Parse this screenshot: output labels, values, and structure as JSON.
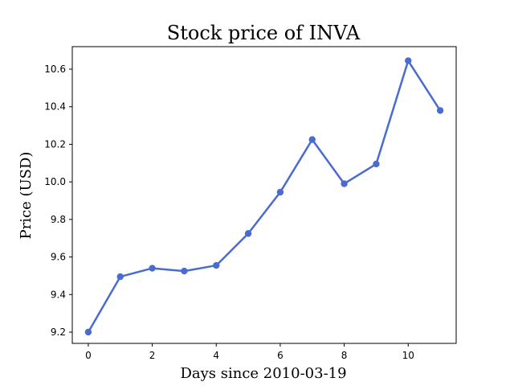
{
  "chart_data": {
    "type": "line",
    "title": "Stock price of INVA",
    "xlabel": "Days since 2010-03-19",
    "ylabel": "Price (USD)",
    "xlim": [
      -0.5,
      11.5
    ],
    "ylim": [
      9.14,
      10.72
    ],
    "x_ticks": [
      0,
      2,
      4,
      6,
      8,
      10
    ],
    "x_tick_labels": [
      "0",
      "2",
      "4",
      "6",
      "8",
      "10"
    ],
    "y_ticks": [
      9.2,
      9.4,
      9.6,
      9.8,
      10.0,
      10.2,
      10.4,
      10.6
    ],
    "y_tick_labels": [
      "9.2",
      "9.4",
      "9.6",
      "9.8",
      "10.0",
      "10.2",
      "10.4",
      "10.6"
    ],
    "grid": false,
    "series": [
      {
        "color": "#4a6bcf",
        "marker": "circle",
        "x": [
          0,
          1,
          2,
          3,
          4,
          5,
          6,
          7,
          8,
          9,
          10,
          11
        ],
        "values": [
          9.2,
          9.495,
          9.54,
          9.525,
          9.555,
          9.725,
          9.945,
          10.225,
          9.99,
          10.095,
          10.645,
          10.38
        ]
      }
    ]
  }
}
